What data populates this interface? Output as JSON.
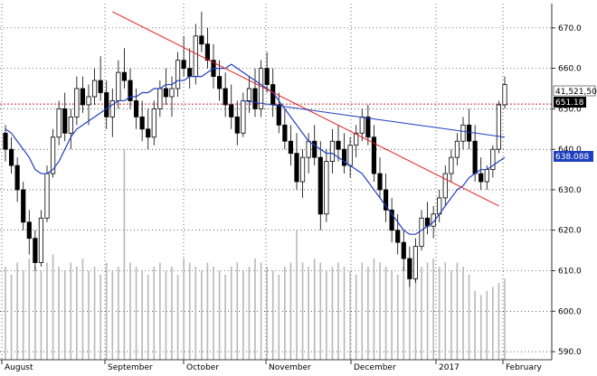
{
  "chart_data": {
    "type": "candlestick",
    "title": "",
    "x_labels": [
      "August",
      "September",
      "October",
      "November",
      "December",
      "2017",
      "February"
    ],
    "y_ticks": [
      590,
      600,
      610,
      620,
      630,
      640,
      650,
      660,
      670
    ],
    "y_tick_labels": [
      "590.0",
      "600.0",
      "610.0",
      "620.0",
      "630.0",
      "640.0",
      "650.0",
      "660.0",
      "670.0"
    ],
    "ylim": [
      588,
      676
    ],
    "grid": true,
    "reference_line": {
      "value": 651.18,
      "label": "651.18",
      "color": "#d62020"
    },
    "volume_label": "41,521,50",
    "ma_label": "638.088",
    "ma_color": "#1f3fbf",
    "trendline_color": "#e02020",
    "up_color": "#ffffff",
    "down_color": "#000000",
    "volume_color": "#b8b8b8",
    "candles": [
      [
        644,
        646,
        637,
        640
      ],
      [
        640,
        643,
        634,
        636
      ],
      [
        636,
        638,
        627,
        630
      ],
      [
        630,
        632,
        620,
        622
      ],
      [
        622,
        625,
        614,
        618
      ],
      [
        618,
        620,
        610,
        612
      ],
      [
        612,
        625,
        611,
        623
      ],
      [
        623,
        636,
        622,
        634
      ],
      [
        634,
        645,
        633,
        643
      ],
      [
        643,
        652,
        641,
        650
      ],
      [
        650,
        654,
        642,
        644
      ],
      [
        644,
        650,
        640,
        648
      ],
      [
        648,
        658,
        646,
        655
      ],
      [
        655,
        658,
        649,
        651
      ],
      [
        651,
        656,
        646,
        653
      ],
      [
        653,
        660,
        651,
        657
      ],
      [
        657,
        663,
        652,
        654
      ],
      [
        654,
        657,
        645,
        648
      ],
      [
        648,
        655,
        643,
        652
      ],
      [
        652,
        662,
        650,
        659
      ],
      [
        659,
        665,
        655,
        657
      ],
      [
        657,
        660,
        650,
        652
      ],
      [
        652,
        655,
        645,
        648
      ],
      [
        648,
        652,
        642,
        645
      ],
      [
        645,
        650,
        640,
        643
      ],
      [
        643,
        652,
        641,
        650
      ],
      [
        650,
        657,
        648,
        655
      ],
      [
        655,
        660,
        651,
        653
      ],
      [
        653,
        658,
        648,
        655
      ],
      [
        655,
        664,
        653,
        662
      ],
      [
        662,
        668,
        658,
        660
      ],
      [
        660,
        665,
        655,
        658
      ],
      [
        658,
        671,
        656,
        668
      ],
      [
        668,
        674,
        664,
        666
      ],
      [
        666,
        670,
        660,
        662
      ],
      [
        662,
        666,
        655,
        658
      ],
      [
        658,
        662,
        652,
        655
      ],
      [
        655,
        659,
        648,
        651
      ],
      [
        651,
        656,
        645,
        648
      ],
      [
        648,
        652,
        641,
        644
      ],
      [
        644,
        654,
        643,
        652
      ],
      [
        652,
        658,
        649,
        655
      ],
      [
        655,
        660,
        648,
        650
      ],
      [
        650,
        662,
        648,
        660
      ],
      [
        660,
        664,
        654,
        656
      ],
      [
        656,
        660,
        648,
        651
      ],
      [
        651,
        654,
        644,
        646
      ],
      [
        646,
        650,
        640,
        642
      ],
      [
        642,
        646,
        636,
        639
      ],
      [
        639,
        644,
        630,
        632
      ],
      [
        632,
        640,
        628,
        638
      ],
      [
        638,
        644,
        634,
        642
      ],
      [
        642,
        646,
        636,
        638
      ],
      [
        638,
        642,
        620,
        624
      ],
      [
        624,
        640,
        622,
        637
      ],
      [
        637,
        645,
        634,
        642
      ],
      [
        642,
        646,
        637,
        640
      ],
      [
        640,
        644,
        634,
        636
      ],
      [
        636,
        643,
        633,
        641
      ],
      [
        641,
        646,
        638,
        644
      ],
      [
        644,
        650,
        642,
        648
      ],
      [
        648,
        651,
        641,
        643
      ],
      [
        643,
        646,
        632,
        634
      ],
      [
        634,
        638,
        628,
        630
      ],
      [
        630,
        634,
        622,
        625
      ],
      [
        625,
        628,
        617,
        620
      ],
      [
        620,
        624,
        614,
        617
      ],
      [
        617,
        620,
        610,
        613
      ],
      [
        613,
        616,
        606,
        608
      ],
      [
        608,
        618,
        607,
        616
      ],
      [
        616,
        625,
        615,
        623
      ],
      [
        623,
        627,
        619,
        621
      ],
      [
        621,
        626,
        618,
        624
      ],
      [
        624,
        630,
        622,
        628
      ],
      [
        628,
        636,
        626,
        634
      ],
      [
        634,
        640,
        632,
        638
      ],
      [
        638,
        644,
        636,
        642
      ],
      [
        642,
        648,
        640,
        646
      ],
      [
        646,
        650,
        640,
        642
      ],
      [
        642,
        646,
        632,
        634
      ],
      [
        634,
        638,
        630,
        632
      ],
      [
        632,
        636,
        630,
        635
      ],
      [
        635,
        641,
        633,
        640
      ],
      [
        640,
        652,
        639,
        651
      ],
      [
        651,
        658,
        650,
        656
      ]
    ],
    "volumes": [
      611,
      609,
      612,
      610,
      613,
      611,
      610,
      612,
      614,
      611,
      610,
      612,
      611,
      613,
      610,
      611,
      609,
      612,
      610,
      611,
      640,
      612,
      611,
      610,
      609,
      611,
      612,
      610,
      611,
      609,
      613,
      612,
      611,
      610,
      612,
      611,
      610,
      609,
      611,
      612,
      610,
      611,
      613,
      612,
      611,
      610,
      609,
      611,
      612,
      620,
      612,
      611,
      613,
      612,
      610,
      611,
      612,
      611,
      610,
      609,
      612,
      611,
      613,
      612,
      611,
      610,
      609,
      611,
      612,
      610,
      611,
      612,
      613,
      611,
      612,
      610,
      612,
      611,
      609,
      605,
      604,
      605,
      606,
      607,
      608
    ],
    "ma": [
      645,
      644,
      642,
      640,
      638,
      635,
      634,
      634,
      635,
      637,
      640,
      643,
      645,
      646,
      647,
      648,
      649,
      650,
      651,
      652,
      652,
      653,
      653,
      654,
      654,
      655,
      655,
      656,
      656,
      657,
      657,
      658,
      658,
      658,
      659,
      660,
      660,
      660,
      661,
      660,
      659,
      658,
      657,
      656,
      655,
      654,
      652,
      650,
      648,
      646,
      644,
      642,
      641,
      640,
      639,
      639,
      638,
      637,
      636,
      635,
      634,
      632,
      630,
      628,
      626,
      624,
      622,
      620,
      619,
      619,
      620,
      621,
      622,
      624,
      626,
      628,
      630,
      631,
      633,
      634,
      635,
      635,
      636,
      637,
      638
    ],
    "trendlines": [
      {
        "name": "red",
        "from": [
          18,
          674
        ],
        "to": [
          83,
          626
        ]
      },
      {
        "name": "blue",
        "from": [
          40,
          652
        ],
        "to": [
          84,
          643
        ]
      }
    ]
  },
  "axis": {
    "months": [
      "August",
      "September",
      "October",
      "November",
      "December",
      "2017",
      "February"
    ]
  }
}
